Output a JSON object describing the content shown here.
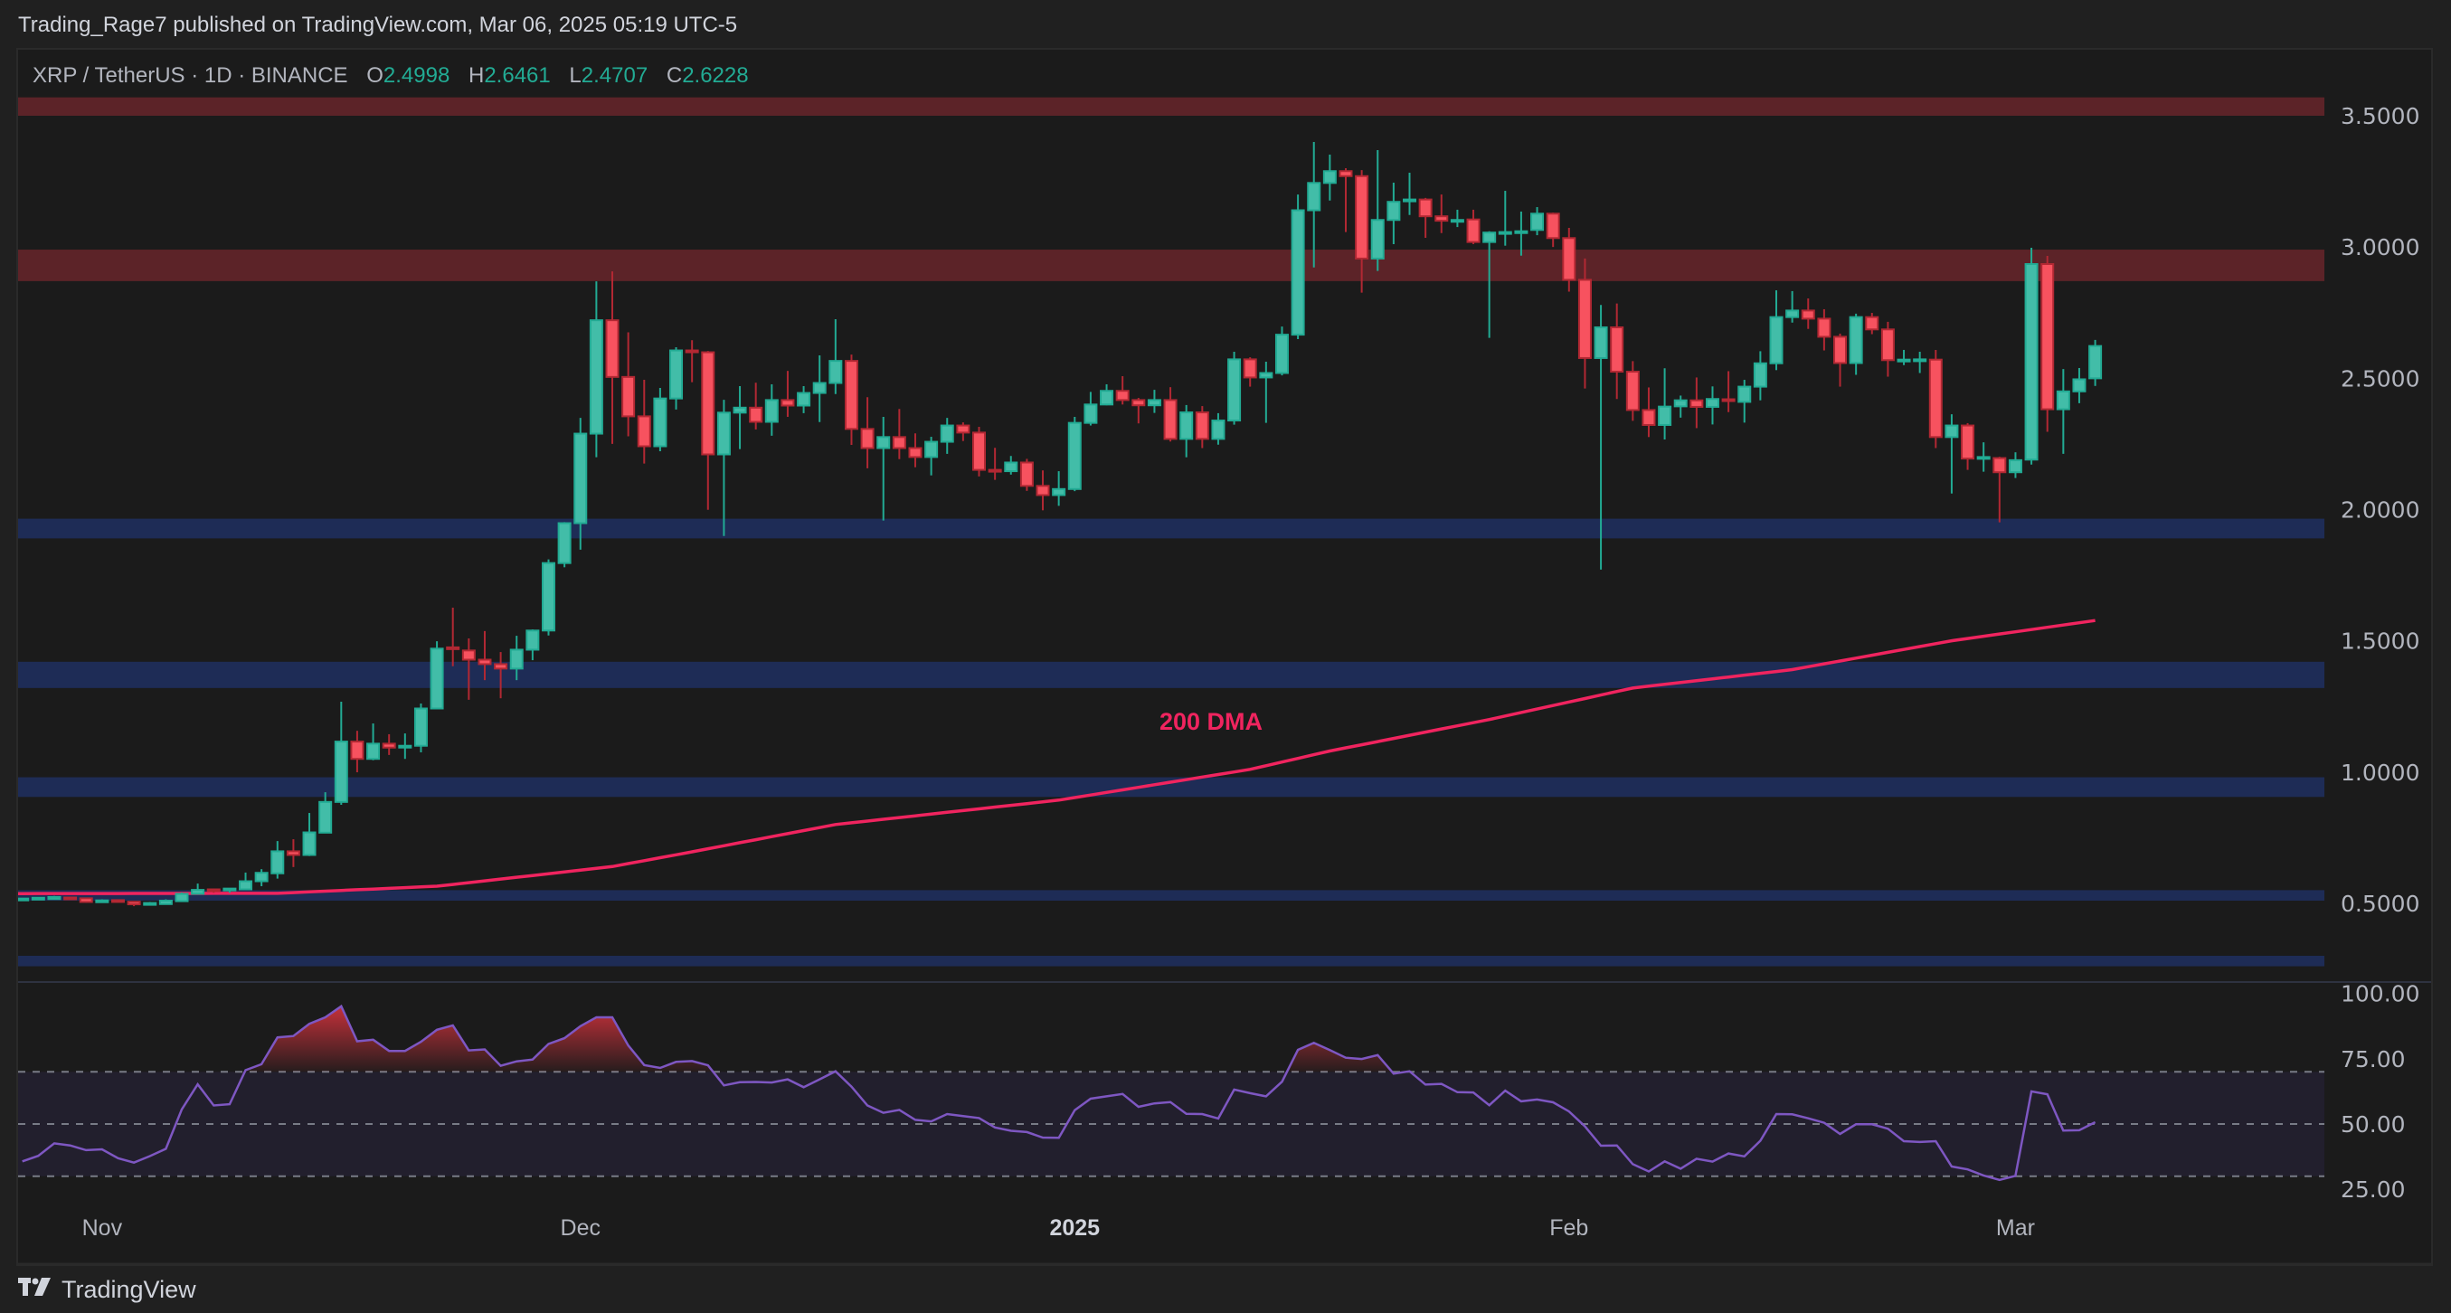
{
  "header": {
    "published": "Trading_Rage7 published on TradingView.com, Mar 06, 2025 05:19 UTC-5"
  },
  "legend": {
    "symbol": "XRP / TetherUS · 1D · BINANCE",
    "o_label": "O",
    "o": "2.4998",
    "h_label": "H",
    "h": "2.6461",
    "l_label": "L",
    "l": "2.4707",
    "c_label": "C",
    "c": "2.6228"
  },
  "footer": {
    "brand": "TradingView",
    "logo_icon": "tradingview-logo-icon"
  },
  "colors": {
    "up": "#22ab94",
    "up_fill": "#42bda8",
    "down": "#b22833",
    "down_fill": "#f7525f",
    "ma": "#f0245f",
    "rsi": "#7e57c2",
    "resistance_zone": "#5c2328",
    "support_zone": "#1e2c56"
  },
  "chart_data": [
    {
      "type": "candlestick",
      "title": "",
      "y_axis": {
        "ticks": [
          "3.5000",
          "3.0000",
          "2.5000",
          "2.0000",
          "1.5000",
          "1.0000",
          "0.5000"
        ],
        "tick_values": [
          3.5,
          3.0,
          2.5,
          2.0,
          1.5,
          1.0,
          0.5
        ],
        "range": [
          0.2,
          3.75
        ],
        "side": "right"
      },
      "x_axis": {
        "ticks": [
          {
            "label": "Nov",
            "bar": 5,
            "bold": false
          },
          {
            "label": "Dec",
            "bar": 35,
            "bold": false
          },
          {
            "label": "2025",
            "bar": 66,
            "bold": true
          },
          {
            "label": "Feb",
            "bar": 97,
            "bold": false
          },
          {
            "label": "Mar",
            "bar": 125,
            "bold": false
          }
        ]
      },
      "grid": false,
      "candles_ohlc": [
        [
          0.516,
          0.519,
          0.512,
          0.518
        ],
        [
          0.518,
          0.522,
          0.514,
          0.521
        ],
        [
          0.516,
          0.528,
          0.514,
          0.524
        ],
        [
          0.522,
          0.525,
          0.514,
          0.516
        ],
        [
          0.519,
          0.521,
          0.502,
          0.505
        ],
        [
          0.507,
          0.515,
          0.503,
          0.511
        ],
        [
          0.512,
          0.514,
          0.505,
          0.507
        ],
        [
          0.506,
          0.507,
          0.489,
          0.496
        ],
        [
          0.496,
          0.505,
          0.493,
          0.501
        ],
        [
          0.497,
          0.515,
          0.496,
          0.51
        ],
        [
          0.508,
          0.541,
          0.506,
          0.536
        ],
        [
          0.536,
          0.575,
          0.534,
          0.551
        ],
        [
          0.553,
          0.556,
          0.54,
          0.549
        ],
        [
          0.553,
          0.557,
          0.54,
          0.556
        ],
        [
          0.553,
          0.617,
          0.55,
          0.584
        ],
        [
          0.584,
          0.63,
          0.565,
          0.616
        ],
        [
          0.614,
          0.737,
          0.594,
          0.698
        ],
        [
          0.698,
          0.744,
          0.638,
          0.684
        ],
        [
          0.684,
          0.844,
          0.68,
          0.77
        ],
        [
          0.769,
          0.923,
          0.767,
          0.886
        ],
        [
          0.886,
          1.268,
          0.875,
          1.116
        ],
        [
          1.116,
          1.157,
          0.999,
          1.05
        ],
        [
          1.05,
          1.185,
          1.045,
          1.108
        ],
        [
          1.108,
          1.144,
          1.065,
          1.093
        ],
        [
          1.095,
          1.147,
          1.05,
          1.1
        ],
        [
          1.1,
          1.261,
          1.075,
          1.242
        ],
        [
          1.242,
          1.498,
          1.24,
          1.47
        ],
        [
          1.475,
          1.626,
          1.403,
          1.47
        ],
        [
          1.463,
          1.509,
          1.275,
          1.428
        ],
        [
          1.428,
          1.537,
          1.35,
          1.411
        ],
        [
          1.411,
          1.457,
          1.281,
          1.394
        ],
        [
          1.394,
          1.519,
          1.35,
          1.466
        ],
        [
          1.466,
          1.543,
          1.426,
          1.539
        ],
        [
          1.539,
          1.81,
          1.52,
          1.796
        ],
        [
          1.796,
          1.952,
          1.78,
          1.948
        ],
        [
          1.948,
          2.349,
          1.847,
          2.289
        ],
        [
          2.289,
          2.869,
          2.199,
          2.721
        ],
        [
          2.721,
          2.907,
          2.25,
          2.505
        ],
        [
          2.505,
          2.675,
          2.279,
          2.355
        ],
        [
          2.355,
          2.494,
          2.175,
          2.241
        ],
        [
          2.241,
          2.463,
          2.222,
          2.423
        ],
        [
          2.423,
          2.618,
          2.381,
          2.606
        ],
        [
          2.606,
          2.645,
          2.485,
          2.6
        ],
        [
          2.599,
          2.604,
          1.999,
          2.21
        ],
        [
          2.21,
          2.418,
          1.899,
          2.369
        ],
        [
          2.369,
          2.47,
          2.23,
          2.388
        ],
        [
          2.388,
          2.483,
          2.305,
          2.334
        ],
        [
          2.334,
          2.477,
          2.281,
          2.417
        ],
        [
          2.417,
          2.528,
          2.353,
          2.396
        ],
        [
          2.396,
          2.47,
          2.367,
          2.444
        ],
        [
          2.444,
          2.587,
          2.333,
          2.482
        ],
        [
          2.482,
          2.725,
          2.44,
          2.566
        ],
        [
          2.566,
          2.59,
          2.246,
          2.307
        ],
        [
          2.307,
          2.428,
          2.157,
          2.234
        ],
        [
          2.234,
          2.353,
          1.958,
          2.276
        ],
        [
          2.276,
          2.383,
          2.192,
          2.234
        ],
        [
          2.234,
          2.29,
          2.161,
          2.2
        ],
        [
          2.2,
          2.277,
          2.13,
          2.258
        ],
        [
          2.258,
          2.349,
          2.212,
          2.32
        ],
        [
          2.32,
          2.332,
          2.261,
          2.293
        ],
        [
          2.293,
          2.315,
          2.126,
          2.151
        ],
        [
          2.151,
          2.235,
          2.113,
          2.149
        ],
        [
          2.146,
          2.204,
          2.133,
          2.179
        ],
        [
          2.179,
          2.193,
          2.071,
          2.09
        ],
        [
          2.09,
          2.149,
          1.997,
          2.055
        ],
        [
          2.055,
          2.146,
          2.014,
          2.078
        ],
        [
          2.078,
          2.353,
          2.07,
          2.33
        ],
        [
          2.33,
          2.448,
          2.32,
          2.4
        ],
        [
          2.4,
          2.477,
          2.397,
          2.452
        ],
        [
          2.452,
          2.508,
          2.4,
          2.417
        ],
        [
          2.417,
          2.425,
          2.328,
          2.397
        ],
        [
          2.397,
          2.456,
          2.368,
          2.417
        ],
        [
          2.417,
          2.466,
          2.259,
          2.269
        ],
        [
          2.269,
          2.398,
          2.199,
          2.37
        ],
        [
          2.37,
          2.394,
          2.234,
          2.269
        ],
        [
          2.269,
          2.367,
          2.247,
          2.339
        ],
        [
          2.339,
          2.601,
          2.323,
          2.572
        ],
        [
          2.572,
          2.58,
          2.468,
          2.503
        ],
        [
          2.503,
          2.563,
          2.33,
          2.52
        ],
        [
          2.52,
          2.697,
          2.511,
          2.666
        ],
        [
          2.666,
          3.2,
          2.649,
          3.14
        ],
        [
          3.14,
          3.4,
          2.922,
          3.244
        ],
        [
          3.244,
          3.352,
          3.177,
          3.289
        ],
        [
          3.289,
          3.3,
          3.057,
          3.27
        ],
        [
          3.27,
          3.293,
          2.826,
          2.956
        ],
        [
          2.956,
          3.369,
          2.909,
          3.103
        ],
        [
          3.103,
          3.245,
          3.011,
          3.172
        ],
        [
          3.18,
          3.283,
          3.122,
          3.181
        ],
        [
          3.181,
          3.187,
          3.035,
          3.117
        ],
        [
          3.117,
          3.2,
          3.053,
          3.1
        ],
        [
          3.1,
          3.142,
          3.076,
          3.103
        ],
        [
          3.105,
          3.142,
          3.011,
          3.019
        ],
        [
          3.019,
          3.06,
          2.654,
          3.055
        ],
        [
          3.055,
          3.214,
          3.005,
          3.057
        ],
        [
          3.057,
          3.135,
          2.967,
          3.06
        ],
        [
          3.065,
          3.152,
          3.045,
          3.127
        ],
        [
          3.127,
          3.131,
          3.0,
          3.034
        ],
        [
          3.034,
          3.073,
          2.83,
          2.875
        ],
        [
          2.875,
          2.956,
          2.461,
          2.577
        ],
        [
          2.577,
          2.779,
          1.771,
          2.694
        ],
        [
          2.694,
          2.785,
          2.421,
          2.525
        ],
        [
          2.525,
          2.565,
          2.338,
          2.379
        ],
        [
          2.379,
          2.465,
          2.276,
          2.322
        ],
        [
          2.322,
          2.538,
          2.267,
          2.392
        ],
        [
          2.393,
          2.434,
          2.35,
          2.416
        ],
        [
          2.416,
          2.503,
          2.31,
          2.391
        ],
        [
          2.391,
          2.469,
          2.324,
          2.421
        ],
        [
          2.42,
          2.527,
          2.371,
          2.415
        ],
        [
          2.41,
          2.494,
          2.331,
          2.468
        ],
        [
          2.468,
          2.603,
          2.416,
          2.557
        ],
        [
          2.557,
          2.835,
          2.531,
          2.733
        ],
        [
          2.733,
          2.832,
          2.712,
          2.758
        ],
        [
          2.758,
          2.804,
          2.688,
          2.727
        ],
        [
          2.727,
          2.763,
          2.606,
          2.658
        ],
        [
          2.658,
          2.67,
          2.468,
          2.558
        ],
        [
          2.558,
          2.746,
          2.513,
          2.733
        ],
        [
          2.733,
          2.749,
          2.668,
          2.686
        ],
        [
          2.686,
          2.715,
          2.506,
          2.569
        ],
        [
          2.568,
          2.608,
          2.55,
          2.571
        ],
        [
          2.57,
          2.601,
          2.52,
          2.572
        ],
        [
          2.571,
          2.608,
          2.234,
          2.276
        ],
        [
          2.276,
          2.363,
          2.061,
          2.32
        ],
        [
          2.32,
          2.329,
          2.151,
          2.194
        ],
        [
          2.197,
          2.256,
          2.144,
          2.2
        ],
        [
          2.196,
          2.201,
          1.951,
          2.142
        ],
        [
          2.142,
          2.218,
          2.12,
          2.188
        ],
        [
          2.19,
          2.997,
          2.171,
          2.935
        ],
        [
          2.935,
          2.966,
          2.296,
          2.382
        ],
        [
          2.382,
          2.535,
          2.212,
          2.45
        ],
        [
          2.45,
          2.539,
          2.405,
          2.496
        ],
        [
          2.4998,
          2.6461,
          2.4707,
          2.6228
        ]
      ],
      "moving_average": {
        "label": "200 DMA",
        "points": [
          [
            0,
            0.537
          ],
          [
            16,
            0.538
          ],
          [
            26,
            0.565
          ],
          [
            37,
            0.64
          ],
          [
            42,
            0.696
          ],
          [
            51,
            0.8
          ],
          [
            65,
            0.893
          ],
          [
            77,
            1.01
          ],
          [
            82,
            1.08
          ],
          [
            92,
            1.2
          ],
          [
            101,
            1.32
          ],
          [
            111,
            1.39
          ],
          [
            121,
            1.5
          ],
          [
            130,
            1.577
          ]
        ]
      },
      "zones": [
        {
          "kind": "resistance",
          "from": 3.5,
          "to": 3.57
        },
        {
          "kind": "resistance",
          "from": 2.87,
          "to": 2.99
        },
        {
          "kind": "support",
          "from": 1.89,
          "to": 1.965
        },
        {
          "kind": "support",
          "from": 1.32,
          "to": 1.42
        },
        {
          "kind": "support",
          "from": 0.905,
          "to": 0.98
        },
        {
          "kind": "support",
          "from": 0.51,
          "to": 0.55
        },
        {
          "kind": "support",
          "from": 0.26,
          "to": 0.3
        }
      ]
    },
    {
      "type": "line",
      "title": "",
      "y_axis": {
        "ticks": [
          "100.00",
          "75.00",
          "50.00",
          "25.00"
        ],
        "tick_values": [
          100,
          75,
          50,
          25
        ],
        "range": [
          20,
          105
        ]
      },
      "levels": [
        70,
        50,
        30
      ],
      "overbought_fill": true,
      "values": [
        35.7,
        37.8,
        42.6,
        41.8,
        40.0,
        40.3,
        36.9,
        35.2,
        37.7,
        40.5,
        55.6,
        65.2,
        57.1,
        57.6,
        70.6,
        72.9,
        83.2,
        83.7,
        88.4,
        90.9,
        95.1,
        81.7,
        82.3,
        78.0,
        78.0,
        81.5,
        86.1,
        87.8,
        78.2,
        78.6,
        72.3,
        74.0,
        74.7,
        80.7,
        82.9,
        87.5,
        90.9,
        90.9,
        80.1,
        72.6,
        71.5,
        73.8,
        74.1,
        72.5,
        64.8,
        66.0,
        66.1,
        65.9,
        67.1,
        64.1,
        67.1,
        70.2,
        64.3,
        57.1,
        54.3,
        55.4,
        51.6,
        51.0,
        53.8,
        53.0,
        52.3,
        48.7,
        47.4,
        46.9,
        44.8,
        44.7,
        55.3,
        59.7,
        60.6,
        61.5,
        56.6,
        57.9,
        58.4,
        53.9,
        53.8,
        52.1,
        63.2,
        61.8,
        60.6,
        66.2,
        78.4,
        81.1,
        78.3,
        75.4,
        74.9,
        76.4,
        69.3,
        70.2,
        65.1,
        65.4,
        62.2,
        62.1,
        57.2,
        62.8,
        58.7,
        59.4,
        58.3,
        54.8,
        49.1,
        41.7,
        41.8,
        34.6,
        31.8,
        35.7,
        32.9,
        36.7,
        35.6,
        38.7,
        37.6,
        43.6,
        53.8,
        53.7,
        52.2,
        50.5,
        46.2,
        49.9,
        49.9,
        48.2,
        43.4,
        43.1,
        43.4,
        33.7,
        32.6,
        30.3,
        28.6,
        30.1,
        62.5,
        61.4,
        47.5,
        47.6,
        50.7
      ]
    }
  ]
}
